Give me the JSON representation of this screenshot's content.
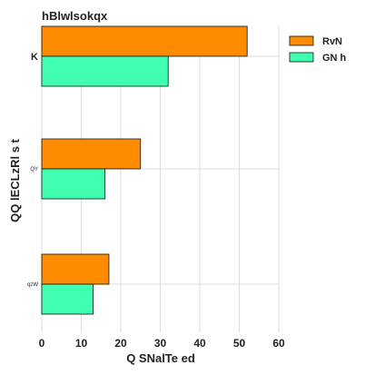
{
  "chart_data": {
    "type": "bar",
    "orientation": "horizontal",
    "title": "hBlwlsokqx",
    "xlabel": "Q SNalTe ed",
    "ylabel": "QQ lECLzRl s t",
    "categories": [
      "K",
      "QY",
      "qzW"
    ],
    "series": [
      {
        "name": "RvN",
        "values": [
          52,
          25,
          17
        ],
        "color": "#ff8c00"
      },
      {
        "name": "GN h",
        "values": [
          32,
          16,
          13
        ],
        "color": "#40ffb0"
      }
    ],
    "xlim": [
      0,
      60
    ],
    "xticks": [
      0,
      10,
      20,
      30,
      40,
      50,
      60
    ],
    "grid": true,
    "legend_position": "top-right"
  }
}
